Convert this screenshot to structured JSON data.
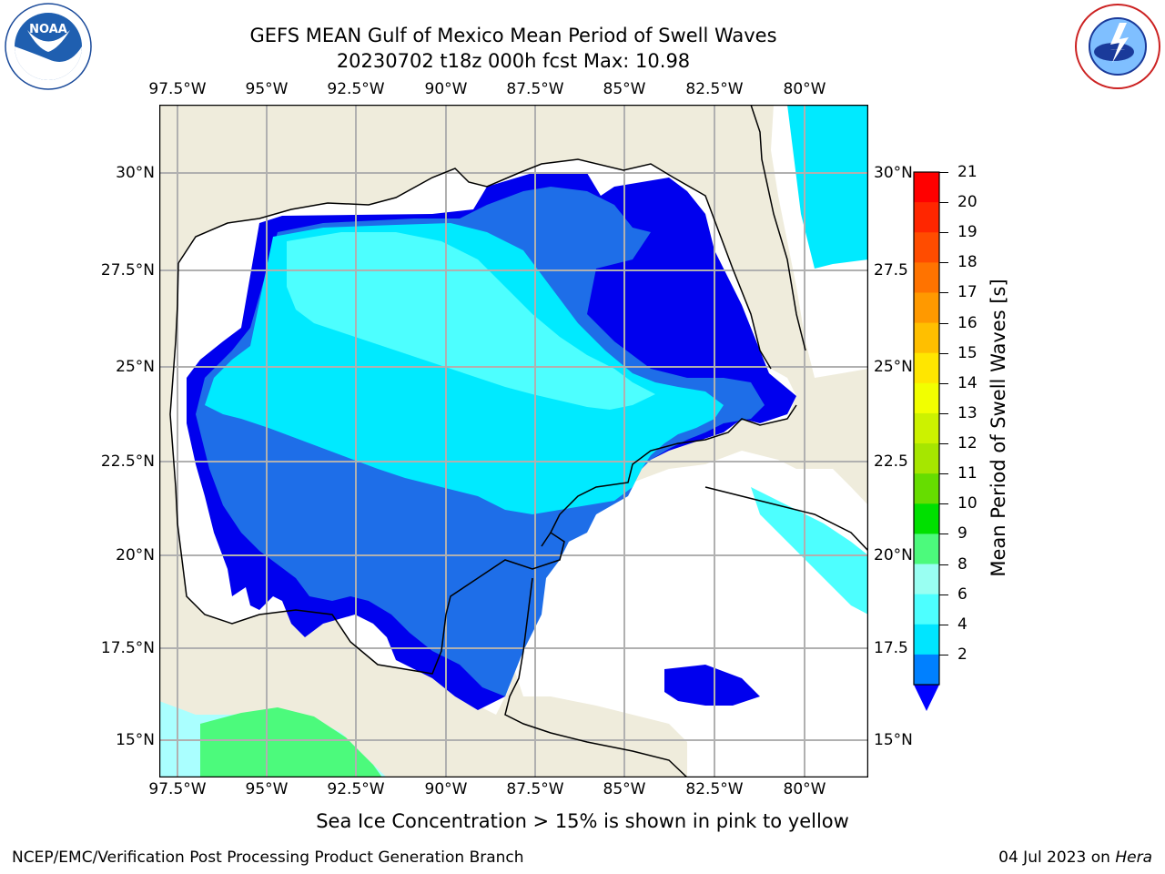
{
  "title_line1": "GEFS MEAN Gulf of Mexico Mean Period of Swell Waves",
  "title_line2": "20230702 t18z 000h fcst   Max: 10.98",
  "lon_ticks": [
    "97.5°W",
    "95°W",
    "92.5°W",
    "90°W",
    "87.5°W",
    "85°W",
    "82.5°W",
    "80°W"
  ],
  "lat_ticks_left": [
    "30°N",
    "27.5°N",
    "25°N",
    "22.5°N",
    "20°N",
    "17.5°N",
    "15°N"
  ],
  "lat_ticks_right": [
    "30°N",
    "27.5",
    "25°N",
    "22.5",
    "20°N",
    "17.5",
    "15°N"
  ],
  "colorbar": {
    "label": "Mean Period of Swell Waves [s]",
    "ticks": [
      "21",
      "20",
      "19",
      "18",
      "17",
      "16",
      "15",
      "14",
      "13",
      "12",
      "11",
      "10",
      "9",
      "8",
      "6",
      "4",
      "2"
    ],
    "colors": [
      "#ff0000",
      "#ff2600",
      "#ff4c00",
      "#ff7300",
      "#ff9900",
      "#ffbf00",
      "#ffe600",
      "#f2ff00",
      "#ccf200",
      "#a6e600",
      "#66dd00",
      "#00e000",
      "#4cfa7c",
      "#99fff2",
      "#4dffff",
      "#00e5ff",
      "#0080ff"
    ],
    "extend_color": "#0000ff"
  },
  "subtitle": "Sea Ice Concentration > 15% is shown in pink to yellow",
  "footer_left": "NCEP/EMC/Verification Post Processing Product Generation Branch",
  "footer_right_date": "04 Jul 2023 on ",
  "footer_right_host": "Hera",
  "logos": {
    "left": "NOAA",
    "right": "NATIONAL WEATHER SERVICE"
  },
  "map_colors": {
    "land": "#efecdc",
    "ocean_no_swell": "#ffffff",
    "swell_2_4": "#1e6ee8",
    "swell_lt_2": "#0000ee",
    "swell_4_6": "#00eaff",
    "swell_6_8": "#4dffff",
    "swell_9_10": "#4cfa7c"
  }
}
